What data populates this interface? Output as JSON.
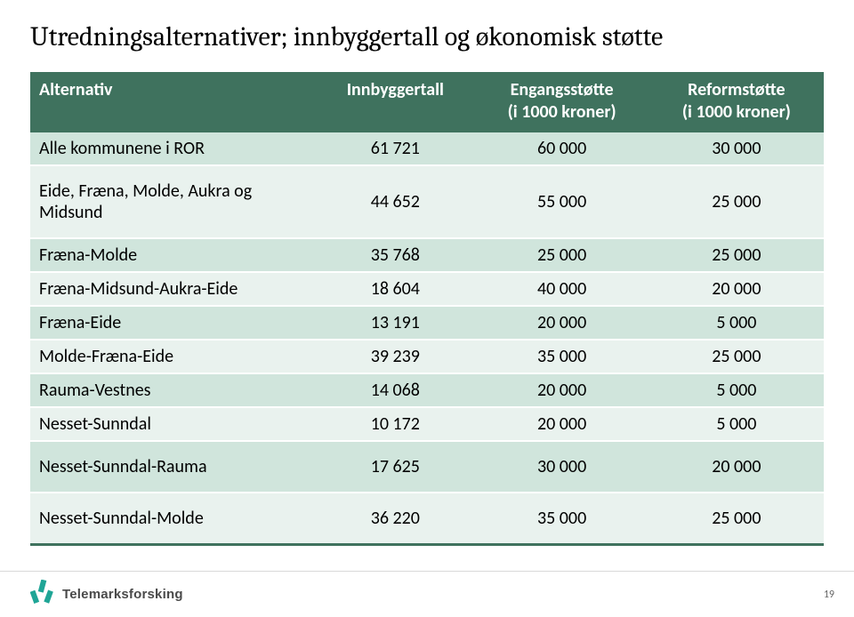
{
  "title": "Utredningsalternativer; innbyggertall og økonomisk støtte",
  "table": {
    "columns": [
      "Alternativ",
      "Innbyggertall",
      "Engangsstøtte\n(i 1000 kroner)",
      "Reformstøtte\n(i 1000 kroner)"
    ],
    "rows": [
      {
        "band": "a",
        "tall": false,
        "cells": [
          "Alle kommunene i ROR",
          "61 721",
          "60 000",
          "30 000"
        ]
      },
      {
        "band": "b",
        "tall": true,
        "cells": [
          "Eide, Fræna, Molde, Aukra og Midsund",
          "44 652",
          "55 000",
          "25 000"
        ]
      },
      {
        "band": "a",
        "tall": false,
        "cells": [
          "Fræna-Molde",
          "35 768",
          "25 000",
          "25 000"
        ]
      },
      {
        "band": "b",
        "tall": false,
        "cells": [
          "Fræna-Midsund-Aukra-Eide",
          "18 604",
          "40 000",
          "20 000"
        ]
      },
      {
        "band": "a",
        "tall": false,
        "cells": [
          "Fræna-Eide",
          "13 191",
          "20 000",
          "5 000"
        ]
      },
      {
        "band": "b",
        "tall": false,
        "cells": [
          "Molde-Fræna-Eide",
          "39 239",
          "35 000",
          "25 000"
        ]
      },
      {
        "band": "a",
        "tall": false,
        "cells": [
          "Rauma-Vestnes",
          "14 068",
          "20 000",
          "5 000"
        ]
      },
      {
        "band": "b",
        "tall": false,
        "cells": [
          "Nesset-Sunndal",
          "10 172",
          "20 000",
          "5 000"
        ]
      },
      {
        "band": "a",
        "tall": true,
        "cells": [
          "Nesset-Sunndal-Rauma",
          "17 625",
          "30 000",
          "20 000"
        ]
      },
      {
        "band": "b",
        "tall": true,
        "cells": [
          "Nesset-Sunndal-Molde",
          "36 220",
          "35 000",
          "25 000"
        ]
      }
    ]
  },
  "footer": {
    "brand": "Telemarksforsking",
    "page": "19"
  },
  "colors": {
    "header_bg": "#3f725e",
    "band_a": "#d0e5dc",
    "band_b": "#e9f2ee",
    "logo_teal": "#1fa596",
    "logo_text": "#4a4a4a"
  }
}
